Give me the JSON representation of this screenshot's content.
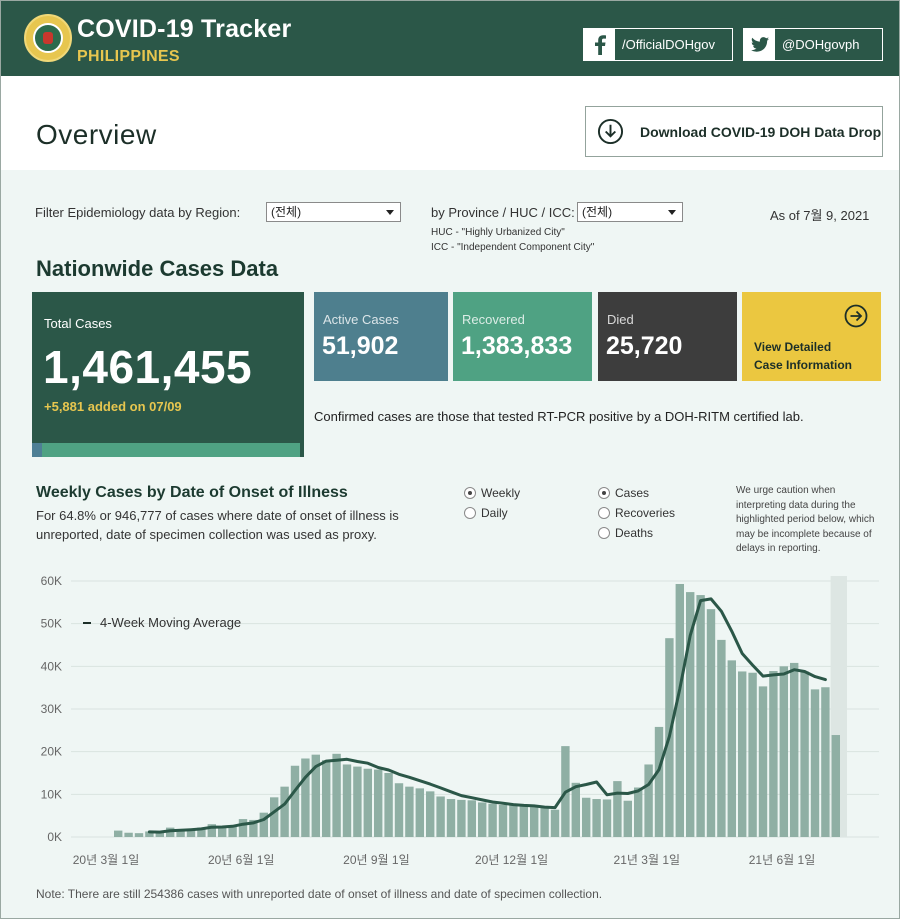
{
  "header": {
    "title": "COVID-19 Tracker",
    "subtitle": "PHILIPPINES",
    "facebook_label": "/OfficialDOHgov",
    "twitter_label": "@DOHgovph",
    "colors": {
      "brand": "#2b5748",
      "accent": "#e7c64f"
    }
  },
  "overview": {
    "title": "Overview",
    "download_label": "Download COVID-19 DOH Data Drop"
  },
  "filters": {
    "region_label": "Filter Epidemiology data by Region:",
    "region_value": "(전체)",
    "province_label": "by Province / HUC / ICC:",
    "province_value": "(전체)",
    "huc_note": "HUC - \"Highly Urbanized City\"",
    "icc_note": "ICC - \"Independent Component City\"",
    "as_of": "As of 7월 9, 2021"
  },
  "nationwide": {
    "title": "Nationwide Cases Data",
    "total_label": "Total Cases",
    "total_value": "1,461,455",
    "added_note": "+5,881 added on 07/09",
    "active_label": "Active Cases",
    "active_value": "51,902",
    "recovered_label": "Recovered",
    "recovered_value": "1,383,833",
    "died_label": "Died",
    "died_value": "25,720",
    "detail_label_1": "View Detailed",
    "detail_label_2": "Case Information",
    "confirmed_note": "Confirmed cases are those that tested RT-PCR positive by a DOH-RITM certified lab.",
    "colors": {
      "active": "#4e7f8e",
      "recovered": "#4fa283",
      "died": "#3d3d3d",
      "detail": "#ebc740"
    }
  },
  "weekly": {
    "title": "Weekly Cases by Date of Onset of Illness",
    "description": "For 64.8% or 946,777 of cases where date of onset of illness is unreported, date of specimen collection was used as proxy.",
    "period_options": [
      "Weekly",
      "Daily"
    ],
    "period_selected": "Weekly",
    "metric_options": [
      "Cases",
      "Recoveries",
      "Deaths"
    ],
    "metric_selected": "Cases",
    "caution": "We urge caution when interpreting data during the highlighted period below, which may be incomplete because of delays in reporting.",
    "footnote": "Note: There are still 254386 cases with unreported date of onset of illness and date of specimen collection."
  },
  "chart_data": {
    "type": "bar",
    "title": "Weekly Cases by Date of Onset of Illness",
    "xlabel": "",
    "ylabel": "",
    "ylim": [
      0,
      60000
    ],
    "y_ticks": [
      "0K",
      "10K",
      "20K",
      "30K",
      "40K",
      "50K",
      "60K"
    ],
    "x_ticks": [
      "20년 3월 1일",
      "20년 6월 1일",
      "20년 9월 1일",
      "20년 12월 1일",
      "21년 3월 1일",
      "21년 6월 1일"
    ],
    "legend": [
      "4-Week Moving Average"
    ],
    "legend_position": "top-left",
    "grid": true,
    "bar_color": "#8fafa4",
    "line_color": "#2b5748",
    "highlight_last_weeks": 1,
    "series": [
      {
        "name": "Cases",
        "values": [
          1500,
          1000,
          900,
          1300,
          1400,
          2200,
          1400,
          1800,
          2200,
          3000,
          2400,
          2500,
          4200,
          4000,
          5700,
          9300,
          11800,
          16700,
          18400,
          19300,
          18000,
          19500,
          17000,
          16500,
          16000,
          15800,
          15000,
          12600,
          11800,
          11400,
          10700,
          9500,
          8900,
          8700,
          8600,
          8100,
          7800,
          7500,
          7400,
          7200,
          7000,
          7000,
          6400,
          21300,
          12700,
          9200,
          8900,
          8800,
          13100,
          8500,
          11600,
          17000,
          25800,
          46600,
          59300,
          57400,
          56700,
          53400,
          46200,
          41400,
          38800,
          38500,
          35300,
          38900,
          40000,
          40800,
          38800,
          34600,
          35100,
          23900
        ]
      },
      {
        "name": "4-Week Moving Average",
        "values": [
          null,
          null,
          null,
          1200,
          1150,
          1450,
          1580,
          1700,
          1900,
          2300,
          2350,
          2500,
          3000,
          3300,
          4100,
          5900,
          7700,
          10900,
          14000,
          16500,
          17800,
          18000,
          18200,
          17700,
          17300,
          16300,
          15700,
          14700,
          14000,
          13200,
          12400,
          11500,
          10600,
          9700,
          9200,
          8700,
          8200,
          7900,
          7600,
          7400,
          7300,
          7000,
          6900,
          10500,
          11800,
          12300,
          12900,
          9900,
          10300,
          10200,
          10800,
          12300,
          15800,
          23600,
          34700,
          47200,
          55400,
          55800,
          52900,
          48200,
          43000,
          40300,
          37700,
          38000,
          38200,
          39200,
          38800,
          37600,
          36900,
          null
        ]
      }
    ]
  }
}
